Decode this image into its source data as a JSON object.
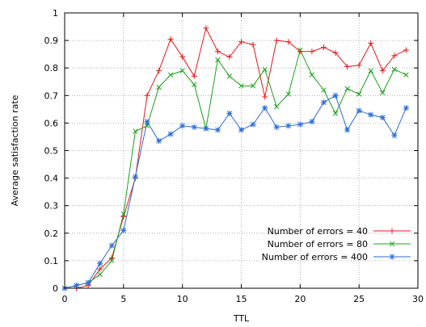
{
  "chart_data": {
    "type": "line",
    "xlabel": "TTL",
    "ylabel": "Average satisfaction rate",
    "xlim": [
      0,
      30
    ],
    "ylim": [
      0,
      1
    ],
    "x_ticks": [
      "0",
      "5",
      "10",
      "15",
      "20",
      "25",
      "30"
    ],
    "y_ticks": [
      "0",
      "0.1",
      "0.2",
      "0.3",
      "0.4",
      "0.5",
      "0.6",
      "0.7",
      "0.8",
      "0.9",
      "1"
    ],
    "grid": true,
    "legend_position": "bottom-right",
    "x": [
      0,
      1,
      2,
      3,
      4,
      5,
      6,
      7,
      8,
      9,
      10,
      11,
      12,
      13,
      14,
      15,
      16,
      17,
      18,
      19,
      20,
      21,
      22,
      23,
      24,
      25,
      26,
      27,
      28,
      29
    ],
    "series": [
      {
        "name": "Number of errors = 40",
        "color": "#e41a1c",
        "marker": "plus",
        "values": [
          0,
          0,
          0.01,
          0.07,
          0.11,
          0.26,
          0.4,
          0.7,
          0.79,
          0.905,
          0.84,
          0.77,
          0.945,
          0.86,
          0.84,
          0.895,
          0.885,
          0.695,
          0.9,
          0.895,
          0.86,
          0.86,
          0.875,
          0.855,
          0.805,
          0.81,
          0.89,
          0.79,
          0.845,
          0.865
        ]
      },
      {
        "name": "Number of errors = 80",
        "color": "#1aa01a",
        "marker": "cross",
        "values": [
          0,
          0.01,
          0.02,
          0.05,
          0.1,
          0.27,
          0.57,
          0.59,
          0.73,
          0.775,
          0.79,
          0.74,
          0.58,
          0.83,
          0.77,
          0.735,
          0.735,
          0.795,
          0.66,
          0.705,
          0.865,
          0.775,
          0.72,
          0.635,
          0.725,
          0.705,
          0.79,
          0.71,
          0.795,
          0.775
        ]
      },
      {
        "name": "Number of errors = 400",
        "color": "#2a6bd8",
        "marker": "star",
        "values": [
          0,
          0.01,
          0.02,
          0.09,
          0.155,
          0.21,
          0.405,
          0.605,
          0.535,
          0.56,
          0.59,
          0.585,
          0.58,
          0.575,
          0.635,
          0.575,
          0.595,
          0.655,
          0.585,
          0.59,
          0.595,
          0.605,
          0.675,
          0.7,
          0.575,
          0.645,
          0.63,
          0.62,
          0.555,
          0.655
        ]
      }
    ]
  }
}
